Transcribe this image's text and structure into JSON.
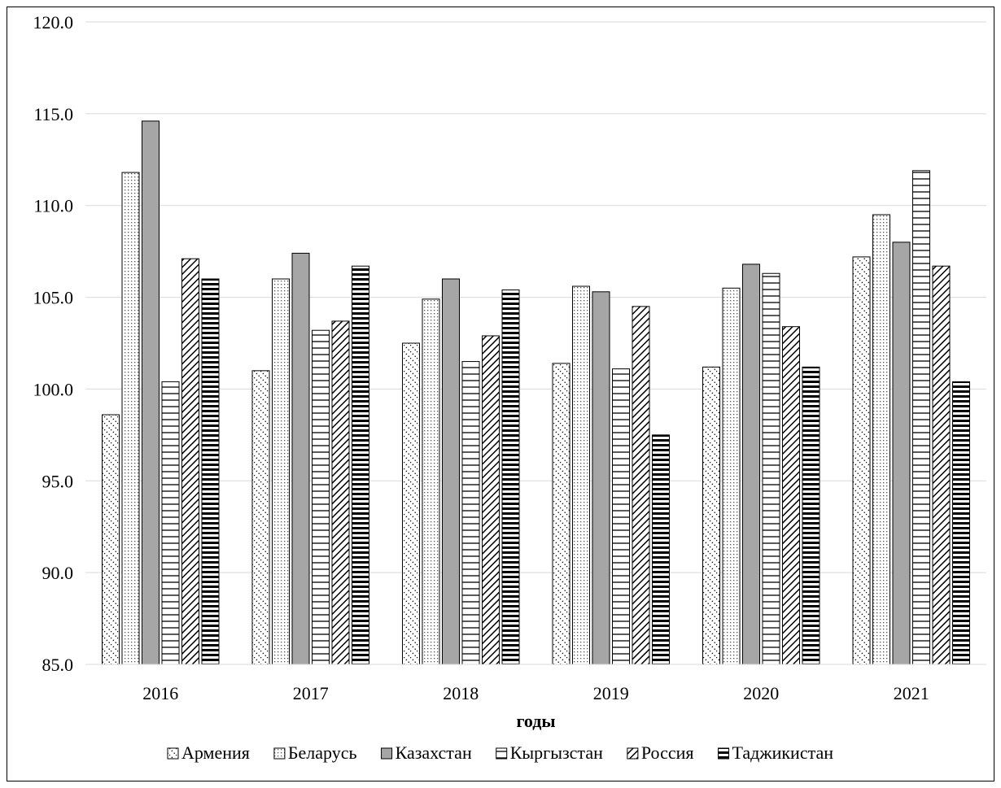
{
  "chart_data": {
    "type": "bar",
    "categories": [
      "2016",
      "2017",
      "2018",
      "2019",
      "2020",
      "2021"
    ],
    "series": [
      {
        "name": "Армения",
        "values": [
          98.6,
          101.0,
          102.5,
          101.4,
          101.2,
          107.2
        ],
        "pattern": "diag-dots"
      },
      {
        "name": "Беларусь",
        "values": [
          111.8,
          106.0,
          104.9,
          105.6,
          105.5,
          109.5
        ],
        "pattern": "dots"
      },
      {
        "name": "Казахстан",
        "values": [
          114.6,
          107.4,
          106.0,
          105.3,
          106.8,
          108.0
        ],
        "pattern": "solid-gray"
      },
      {
        "name": "Кыргызстан",
        "values": [
          100.4,
          103.2,
          101.5,
          101.1,
          106.3,
          111.9
        ],
        "pattern": "horizontal-lines"
      },
      {
        "name": "Россия",
        "values": [
          107.1,
          103.7,
          102.9,
          104.5,
          103.4,
          106.7
        ],
        "pattern": "diagonal-hatch"
      },
      {
        "name": "Таджикистан",
        "values": [
          106.0,
          106.7,
          105.4,
          97.5,
          101.2,
          100.4
        ],
        "pattern": "thick-horizontal"
      }
    ],
    "xlabel": "годы",
    "ylabel": "",
    "ylim": [
      85.0,
      120.0
    ],
    "yticks": [
      "85.0",
      "90.0",
      "95.0",
      "100.0",
      "105.0",
      "110.0",
      "115.0",
      "120.0"
    ],
    "grid": true,
    "legend_position": "bottom"
  }
}
